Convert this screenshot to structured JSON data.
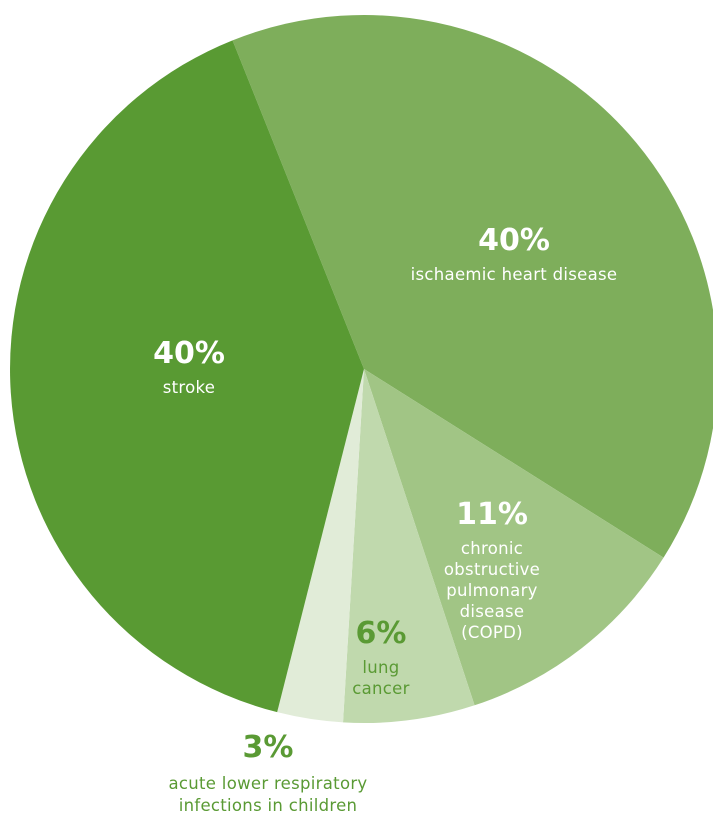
{
  "chart_data": {
    "type": "pie",
    "slices": [
      {
        "value": 40,
        "value_label": "40%",
        "label_lines": [
          "ischaemic heart disease"
        ],
        "color": "#7eae5b",
        "text_color": "#ffffff"
      },
      {
        "value": 11,
        "value_label": "11%",
        "label_lines": [
          "chronic",
          "obstructive",
          "pulmonary",
          "disease",
          "(COPD)"
        ],
        "color": "#a1c585",
        "text_color": "#ffffff"
      },
      {
        "value": 6,
        "value_label": "6%",
        "label_lines": [
          "lung",
          "cancer"
        ],
        "color": "#c0d9ad",
        "text_color": "#5a9a34"
      },
      {
        "value": 3,
        "value_label": "3%",
        "label_lines": [
          "acute lower respiratory",
          "infections in children"
        ],
        "color": "#e1ecd8",
        "text_color": "#5a9a34"
      },
      {
        "value": 40,
        "value_label": "40%",
        "label_lines": [
          "stroke"
        ],
        "color": "#599a33",
        "text_color": "#ffffff"
      }
    ]
  }
}
